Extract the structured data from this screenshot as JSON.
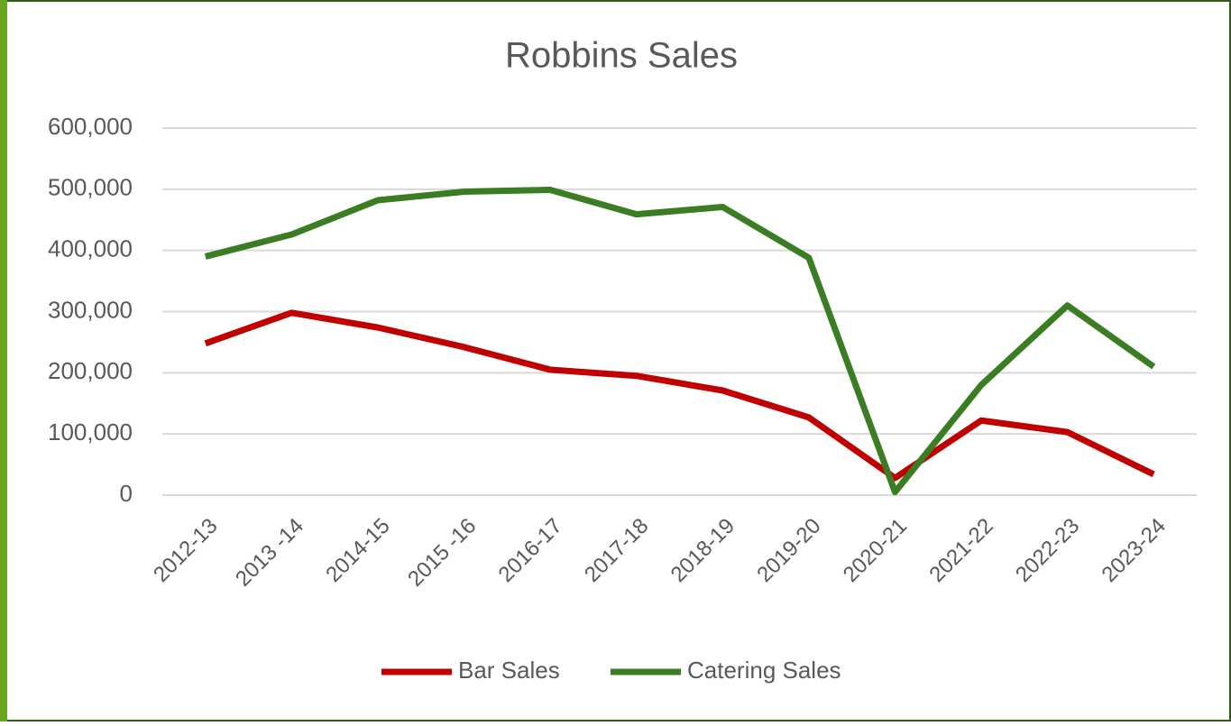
{
  "chart_data": {
    "type": "line",
    "title": "Robbins Sales",
    "categories": [
      "2012-13",
      "2013 -14",
      "2014-15",
      "2015 -16",
      "2016-17",
      "2017-18",
      "2018-19",
      "2019-20",
      "2020-21",
      "2021-22",
      "2022-23",
      "2023-24"
    ],
    "series": [
      {
        "name": "Bar Sales",
        "color": "#c00000",
        "values": [
          248000,
          298000,
          274000,
          242000,
          205000,
          195000,
          171000,
          127000,
          28000,
          122000,
          103000,
          34000
        ]
      },
      {
        "name": "Catering Sales",
        "color": "#3a7d22",
        "values": [
          390000,
          426000,
          482000,
          496000,
          499000,
          459000,
          471000,
          388000,
          5000,
          180000,
          310000,
          210000
        ]
      }
    ],
    "ylim": [
      0,
      600000
    ],
    "yticks": [
      0,
      {
        "value": 100000,
        "label": "100,000"
      },
      {
        "value": 200000,
        "label": "200,000"
      },
      {
        "value": 300000,
        "label": "300,000"
      },
      {
        "value": 400000,
        "label": "400,000"
      },
      {
        "value": 500000,
        "label": "500,000"
      },
      {
        "value": 600000,
        "label": "600,000"
      }
    ],
    "grid": true,
    "legend": "bottom"
  }
}
